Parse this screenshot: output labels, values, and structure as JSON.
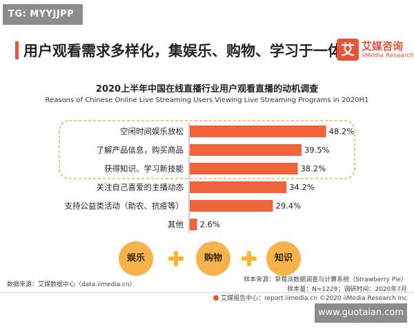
{
  "tag_label": "TG: MYYJJPP",
  "headline": "用户观看需求多样化，集娱乐、购物、学习于一体",
  "logo": {
    "mark": "艾",
    "name_cn": "艾媒咨询",
    "name_en": "iiMedia Research"
  },
  "chart_data": {
    "type": "bar",
    "orientation": "horizontal",
    "title": "2020上半年中国在线直播行业用户观看直播的动机调查",
    "subtitle": "Reasons of Chinese Online Live Streaming Users Viewing Live Streaming Programs in 2020H1",
    "categories": [
      "空闲时间娱乐放松",
      "了解产品信息，购买商品",
      "获得知识、学习新技能",
      "关注自己喜爱的主播动态",
      "支持公益类活动（助农、抗疫等）",
      "其他"
    ],
    "values": [
      48.2,
      39.5,
      38.2,
      34.2,
      29.4,
      2.6
    ],
    "value_labels": [
      "48.2%",
      "39.5%",
      "38.2%",
      "34.2%",
      "29.4%",
      "2.6%"
    ],
    "unit": "%",
    "bar_color": "#f0643c",
    "highlight_box": {
      "first_index": 0,
      "last_index": 2,
      "border_color": "#f0a030"
    }
  },
  "bubbles": [
    "娱乐",
    "购物",
    "知识"
  ],
  "bubble_color": "#f6b34a",
  "plus_color": "#f7b733",
  "source_left": "数据来源：艾媒数据中心（data.iimedia.cn）",
  "note_line1": "样本来源：草莓派数据调查与计算系统（Strawberry Pie）",
  "note_line2": "样本量：N=1228；调研时间：2020年7月",
  "footer_text": "艾媒报告中心：report.iimedia.cn  ©2020  iiMedia Research  Inc",
  "watermark": "www.guotaian.com"
}
